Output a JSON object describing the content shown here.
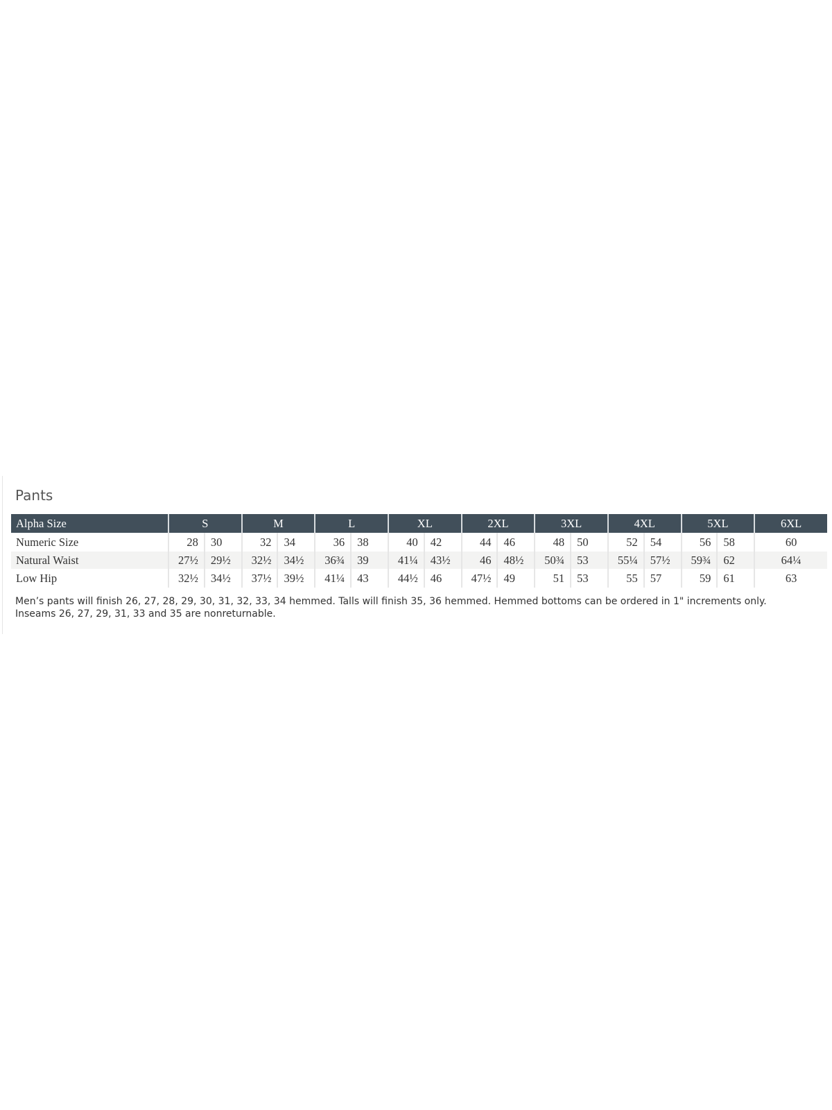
{
  "title": "Pants",
  "table": {
    "header": {
      "label": "Alpha Size",
      "sizes": [
        "S",
        "M",
        "L",
        "XL",
        "2XL",
        "3XL",
        "4XL",
        "5XL",
        "6XL"
      ]
    },
    "rows": [
      {
        "label": "Numeric Size",
        "values": [
          [
            "28",
            "30"
          ],
          [
            "32",
            "34"
          ],
          [
            "36",
            "38"
          ],
          [
            "40",
            "42"
          ],
          [
            "44",
            "46"
          ],
          [
            "48",
            "50"
          ],
          [
            "52",
            "54"
          ],
          [
            "56",
            "58"
          ],
          [
            "60"
          ]
        ]
      },
      {
        "label": "Natural Waist",
        "values": [
          [
            "27½",
            "29½"
          ],
          [
            "32½",
            "34½"
          ],
          [
            "36¾",
            "39"
          ],
          [
            "41¼",
            "43½"
          ],
          [
            "46",
            "48½"
          ],
          [
            "50¾",
            "53"
          ],
          [
            "55¼",
            "57½"
          ],
          [
            "59¾",
            "62"
          ],
          [
            "64¼"
          ]
        ]
      },
      {
        "label": "Low Hip",
        "values": [
          [
            "32½",
            "34½"
          ],
          [
            "37½",
            "39½"
          ],
          [
            "41¼",
            "43"
          ],
          [
            "44½",
            "46"
          ],
          [
            "47½",
            "49"
          ],
          [
            "51",
            "53"
          ],
          [
            "55",
            "57"
          ],
          [
            "59",
            "61"
          ],
          [
            "63"
          ]
        ]
      }
    ]
  },
  "notes": [
    "Men’s pants will finish 26, 27, 28, 29, 30, 31, 32, 33, 34 hemmed. Talls will finish 35, 36 hemmed. Hemmed bottoms can be ordered in 1\" increments only.",
    "Inseams 26, 27, 29, 31, 33 and 35 are nonreturnable."
  ],
  "colors": {
    "header_bg": "#414f5a",
    "shade_row": "#f3f3f2"
  }
}
